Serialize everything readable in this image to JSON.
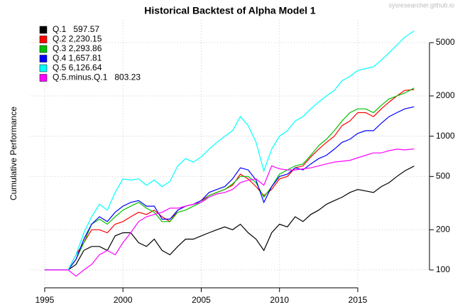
{
  "chart_data": {
    "type": "line",
    "title": "Historical Backtest of Alpha Model 1",
    "watermark": "sysresearcher.github.io",
    "y_label": "Cumulative Performance",
    "x": [
      1995,
      1996.5,
      1997,
      1997.5,
      1998,
      1998.5,
      1999,
      1999.5,
      2000,
      2000.5,
      2001,
      2001.5,
      2002,
      2002.5,
      2003,
      2003.5,
      2004,
      2004.5,
      2005,
      2005.5,
      2006,
      2006.5,
      2007,
      2007.5,
      2008,
      2008.5,
      2009,
      2009.5,
      2010,
      2010.5,
      2011,
      2011.5,
      2012,
      2012.5,
      2013,
      2013.5,
      2014,
      2014.5,
      2015,
      2015.5,
      2016,
      2016.5,
      2017,
      2017.5,
      2018,
      2018.6
    ],
    "series": [
      {
        "name": "Q.1   597.57",
        "color": "#000000",
        "values": [
          100,
          100,
          110,
          140,
          150,
          150,
          140,
          180,
          190,
          190,
          160,
          150,
          170,
          140,
          130,
          150,
          170,
          170,
          180,
          190,
          200,
          210,
          200,
          220,
          190,
          170,
          140,
          190,
          220,
          210,
          250,
          230,
          260,
          280,
          310,
          330,
          350,
          380,
          400,
          390,
          380,
          420,
          450,
          500,
          550,
          598
        ]
      },
      {
        "name": "Q.2 2,230.15",
        "color": "#ff0000",
        "values": [
          100,
          100,
          130,
          160,
          200,
          200,
          190,
          220,
          230,
          250,
          270,
          260,
          280,
          250,
          230,
          280,
          300,
          310,
          330,
          360,
          380,
          400,
          430,
          520,
          480,
          420,
          360,
          400,
          480,
          500,
          580,
          600,
          700,
          800,
          900,
          1000,
          1200,
          1300,
          1500,
          1500,
          1400,
          1600,
          1800,
          2000,
          2200,
          2230
        ]
      },
      {
        "name": "Q.3 2,293.86",
        "color": "#00c000",
        "values": [
          100,
          100,
          120,
          160,
          220,
          240,
          220,
          250,
          280,
          300,
          320,
          290,
          270,
          230,
          230,
          270,
          280,
          300,
          320,
          360,
          380,
          400,
          440,
          500,
          500,
          450,
          350,
          420,
          520,
          560,
          600,
          620,
          720,
          850,
          950,
          1100,
          1300,
          1500,
          1600,
          1600,
          1500,
          1700,
          1900,
          2000,
          2100,
          2294
        ]
      },
      {
        "name": "Q.4 1,657.81",
        "color": "#0000ff",
        "values": [
          100,
          100,
          120,
          170,
          220,
          250,
          230,
          270,
          300,
          320,
          330,
          300,
          300,
          240,
          240,
          280,
          300,
          310,
          330,
          380,
          400,
          420,
          480,
          580,
          560,
          470,
          320,
          420,
          500,
          520,
          580,
          560,
          620,
          680,
          720,
          800,
          900,
          950,
          1050,
          1100,
          1100,
          1250,
          1400,
          1500,
          1600,
          1658
        ]
      },
      {
        "name": "Q.5 6,126.64",
        "color": "#00ffff",
        "values": [
          100,
          100,
          130,
          190,
          250,
          310,
          280,
          380,
          480,
          470,
          480,
          430,
          470,
          420,
          460,
          600,
          680,
          640,
          700,
          800,
          900,
          1000,
          1100,
          1400,
          1200,
          900,
          550,
          800,
          1000,
          1100,
          1300,
          1400,
          1600,
          1800,
          2000,
          2200,
          2600,
          2800,
          3100,
          3200,
          3300,
          3700,
          4200,
          4800,
          5500,
          6127
        ]
      },
      {
        "name": "Q.5.minus.Q.1   803.23",
        "color": "#ff00ff",
        "values": [
          100,
          100,
          90,
          100,
          110,
          130,
          140,
          130,
          160,
          190,
          230,
          250,
          260,
          270,
          290,
          290,
          300,
          310,
          320,
          350,
          370,
          380,
          400,
          450,
          470,
          480,
          430,
          600,
          570,
          560,
          560,
          570,
          580,
          600,
          620,
          640,
          650,
          660,
          690,
          720,
          750,
          750,
          780,
          800,
          790,
          803
        ]
      }
    ],
    "xlim": [
      1994.05,
      2019.58
    ],
    "xticks": [
      1995,
      2000,
      2005,
      2010,
      2015
    ],
    "ylim": [
      73.6,
      7400
    ],
    "yticks": [
      100,
      200,
      500,
      1000,
      2000,
      5000
    ],
    "log_y": true,
    "grid": true,
    "legend": "top-left"
  }
}
